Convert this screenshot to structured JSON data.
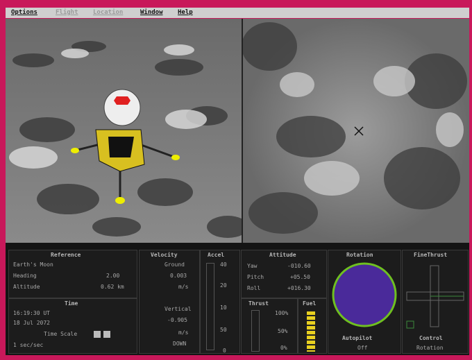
{
  "menu": [
    "Options",
    "Flight",
    "Location",
    "Window",
    "Help"
  ],
  "reference": {
    "title": "Reference",
    "body": "Earth's Moon",
    "rows": [
      [
        "Heading",
        "2.00"
      ],
      [
        "Altitude",
        "0.62 km"
      ]
    ]
  },
  "time": {
    "title": "Time",
    "clock": "16:19:30 UT",
    "date": "18 Jul 2072",
    "scale_label": "Time Scale",
    "scale": "1 sec/sec"
  },
  "velocity": {
    "title": "Velocity",
    "ground_label": "Ground",
    "ground": "0.003",
    "ground_unit": "m/s",
    "vertical_label": "Vertical",
    "vertical": "-0.905",
    "vertical_unit": "m/s",
    "direction": "DOWN"
  },
  "accel": {
    "title": "Accel",
    "scale": [
      "40",
      "20",
      "10",
      "50",
      "0"
    ]
  },
  "attitude": {
    "title": "Attitude",
    "rows": [
      [
        "Yaw",
        "-010.60"
      ],
      [
        "Pitch",
        "+05.50"
      ],
      [
        "Roll",
        "+016.30"
      ]
    ]
  },
  "thrust": {
    "title": "Thrust",
    "scale": [
      "100%",
      "50%",
      "0%"
    ]
  },
  "fuel": {
    "title": "Fuel"
  },
  "rotation": {
    "title": "Rotation"
  },
  "autopilot": {
    "title": "Autopilot",
    "value": "Off"
  },
  "fine_thrust": {
    "title": "FineThrust"
  },
  "control": {
    "title": "Control",
    "value": "Rotation"
  }
}
